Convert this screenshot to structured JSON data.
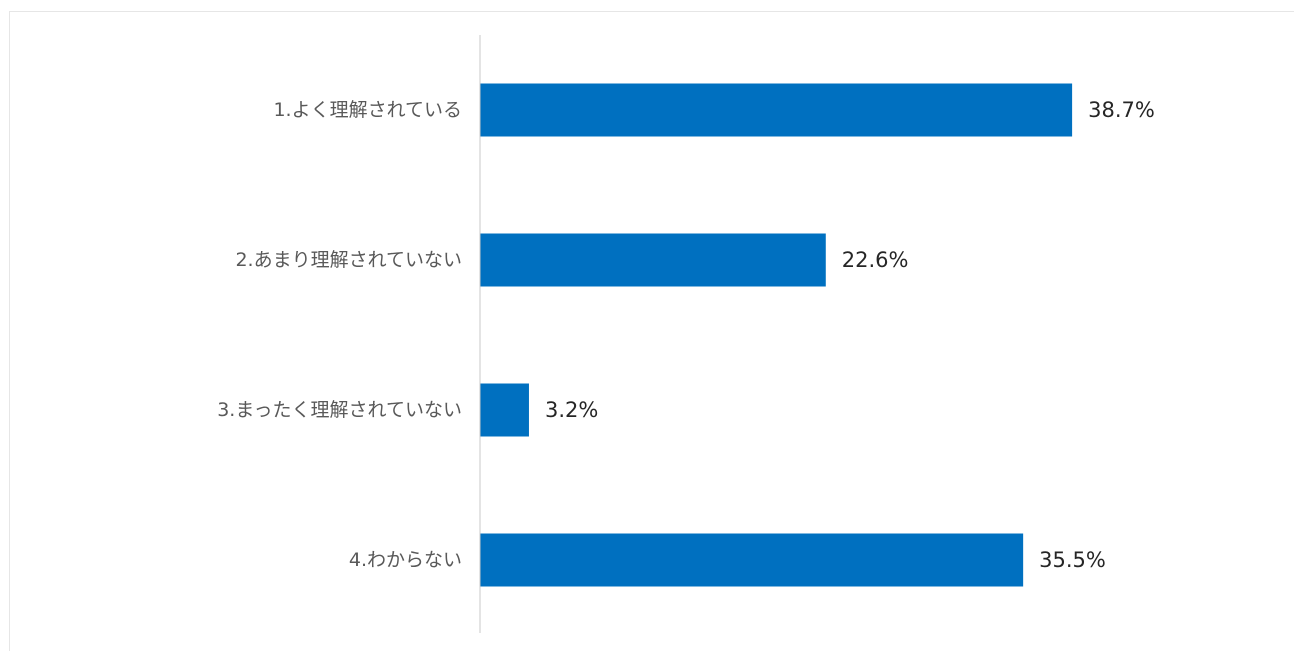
{
  "chart_data": {
    "type": "bar",
    "orientation": "horizontal",
    "categories": [
      "1.よく理解されている",
      "2.あまり理解されていない",
      "3.まったく理解されていない",
      "4.わからない"
    ],
    "values": [
      38.7,
      22.6,
      3.2,
      35.5
    ],
    "value_labels": [
      "38.7%",
      "22.6%",
      "3.2%",
      "35.5%"
    ],
    "unit": "%",
    "xlim": [
      0,
      100
    ],
    "grid": false,
    "legend": "none",
    "bar_color": "#0070c0"
  }
}
